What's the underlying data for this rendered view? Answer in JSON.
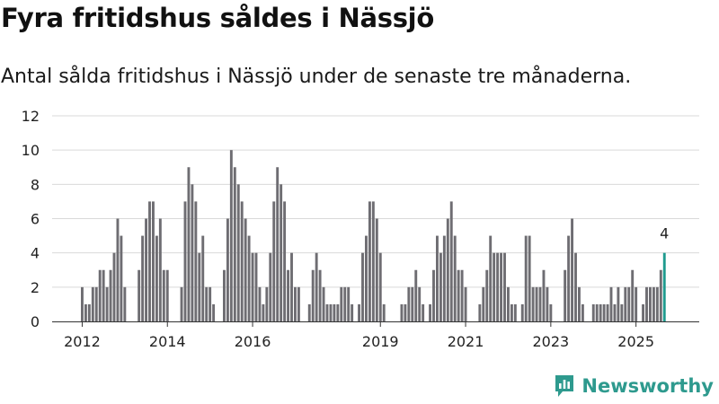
{
  "title": "Fyra fritidshus såldes i Nässjö",
  "subtitle": "Antal sålda fritidshus i Nässjö under de senaste tre månaderna.",
  "brand": {
    "name": "Newsworthy",
    "icon": "newsworthy-logo-icon"
  },
  "colors": {
    "bar": "#6e6d72",
    "highlight": "#1f9b8f",
    "grid": "#d9d9d9",
    "axis": "#333333",
    "brand": "#2e9a8e"
  },
  "chart_data": {
    "type": "bar",
    "title": "Fyra fritidshus såldes i Nässjö",
    "subtitle": "Antal sålda fritidshus i Nässjö under de senaste tre månaderna.",
    "xlabel": "",
    "ylabel": "",
    "ylim": [
      0,
      12
    ],
    "yticks": [
      0,
      2,
      4,
      6,
      8,
      10,
      12
    ],
    "xticks": [
      {
        "label": "2012",
        "index": 0
      },
      {
        "label": "2014",
        "index": 24
      },
      {
        "label": "2016",
        "index": 48
      },
      {
        "label": "2019",
        "index": 84
      },
      {
        "label": "2021",
        "index": 108
      },
      {
        "label": "2023",
        "index": 132
      },
      {
        "label": "2025",
        "index": 156
      }
    ],
    "grid": true,
    "start": "2012-01",
    "period": "month",
    "values": [
      2,
      1,
      1,
      2,
      2,
      3,
      3,
      2,
      3,
      4,
      6,
      5,
      2,
      0,
      0,
      0,
      3,
      5,
      6,
      7,
      7,
      5,
      6,
      3,
      3,
      0,
      0,
      0,
      2,
      7,
      9,
      8,
      7,
      4,
      5,
      2,
      2,
      1,
      0,
      0,
      3,
      6,
      10,
      9,
      8,
      7,
      6,
      5,
      4,
      4,
      2,
      1,
      2,
      4,
      7,
      9,
      8,
      7,
      3,
      4,
      2,
      2,
      0,
      0,
      1,
      3,
      4,
      3,
      2,
      1,
      1,
      1,
      1,
      2,
      2,
      2,
      1,
      0,
      1,
      4,
      5,
      7,
      7,
      6,
      4,
      1,
      0,
      0,
      0,
      0,
      1,
      1,
      2,
      2,
      3,
      2,
      1,
      0,
      1,
      3,
      5,
      4,
      5,
      6,
      7,
      5,
      3,
      3,
      2,
      0,
      0,
      0,
      1,
      2,
      3,
      5,
      4,
      4,
      4,
      4,
      2,
      1,
      1,
      0,
      1,
      5,
      5,
      2,
      2,
      2,
      3,
      2,
      1,
      0,
      0,
      0,
      3,
      5,
      6,
      4,
      2,
      1,
      0,
      0,
      1,
      1,
      1,
      1,
      1,
      2,
      1,
      2,
      1,
      2,
      2,
      3,
      2,
      0,
      1,
      2,
      2,
      2,
      2,
      3,
      4
    ],
    "highlight": {
      "index": 164,
      "value": 4,
      "label": "4"
    }
  }
}
